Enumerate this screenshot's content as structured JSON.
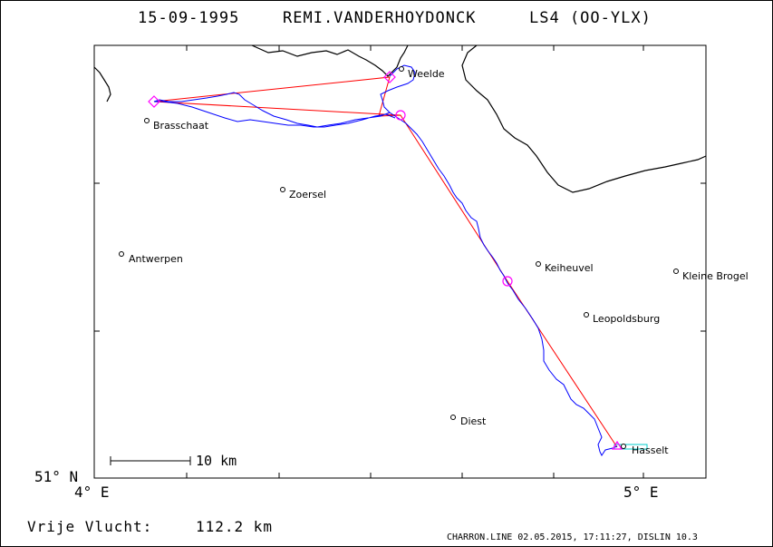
{
  "header": {
    "date": "15-09-1995",
    "pilot": "REMI.VANDERHOYDONCK",
    "glider": "LS4 (OO-YLX)"
  },
  "places": [
    {
      "name": "Weelde"
    },
    {
      "name": "Brasschaat"
    },
    {
      "name": "Zoersel"
    },
    {
      "name": "Antwerpen"
    },
    {
      "name": "Keiheuvel"
    },
    {
      "name": "Kleine Brogel"
    },
    {
      "name": "Leopoldsburg"
    },
    {
      "name": "Diest"
    },
    {
      "name": "Hasselt"
    }
  ],
  "axes": {
    "lat_label": "51° N",
    "lon_left": "4° E",
    "lon_right": "5° E"
  },
  "scale_bar": {
    "label": "10 km"
  },
  "distance": {
    "label": "Vrije Vlucht:",
    "value": "112.2 km"
  },
  "footer": {
    "text": "CHARRON.LINE 02.05.2015, 17:11:27, DISLIN 10.3"
  },
  "colors": {
    "task_line": "#ff0000",
    "flight_track": "#0000ff",
    "turnpoint": "#ff00ff",
    "border": "#000000"
  }
}
